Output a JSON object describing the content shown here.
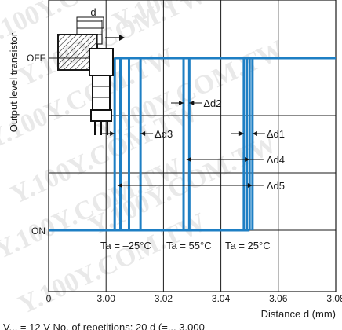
{
  "chart_data": {
    "type": "line",
    "xlabel": "Distance d (mm)",
    "ylabel": "Output level transistor",
    "x_ticks": [
      "0",
      "3.00",
      "3.02",
      "3.04",
      "3.06",
      "3.08"
    ],
    "xlim": [
      2.98,
      3.09
    ],
    "y_ticks": [
      "ON",
      "OFF"
    ],
    "grid": true,
    "footer_text": "V... = 12 V  No. of repetitions: 20  d (=... 3.000",
    "watermark": "Y.100Y.COM.TW",
    "sensor_label": "d",
    "series": [
      {
        "name": "Ta = –25°C",
        "x": [
          3.003,
          3.005,
          3.008,
          3.012
        ]
      },
      {
        "name": "Ta = 55°C",
        "x": [
          3.027,
          3.029
        ]
      },
      {
        "name": "Ta = 25°C",
        "x": [
          3.048,
          3.049,
          3.05,
          3.051
        ]
      }
    ],
    "annotations": [
      "Δd1",
      "Δd2",
      "Δd3",
      "Δd4",
      "Δd5"
    ],
    "colors": {
      "line": "#1e7fc4",
      "grid": "#1a1a1a",
      "hatch_block": "#1a1a1a"
    }
  }
}
